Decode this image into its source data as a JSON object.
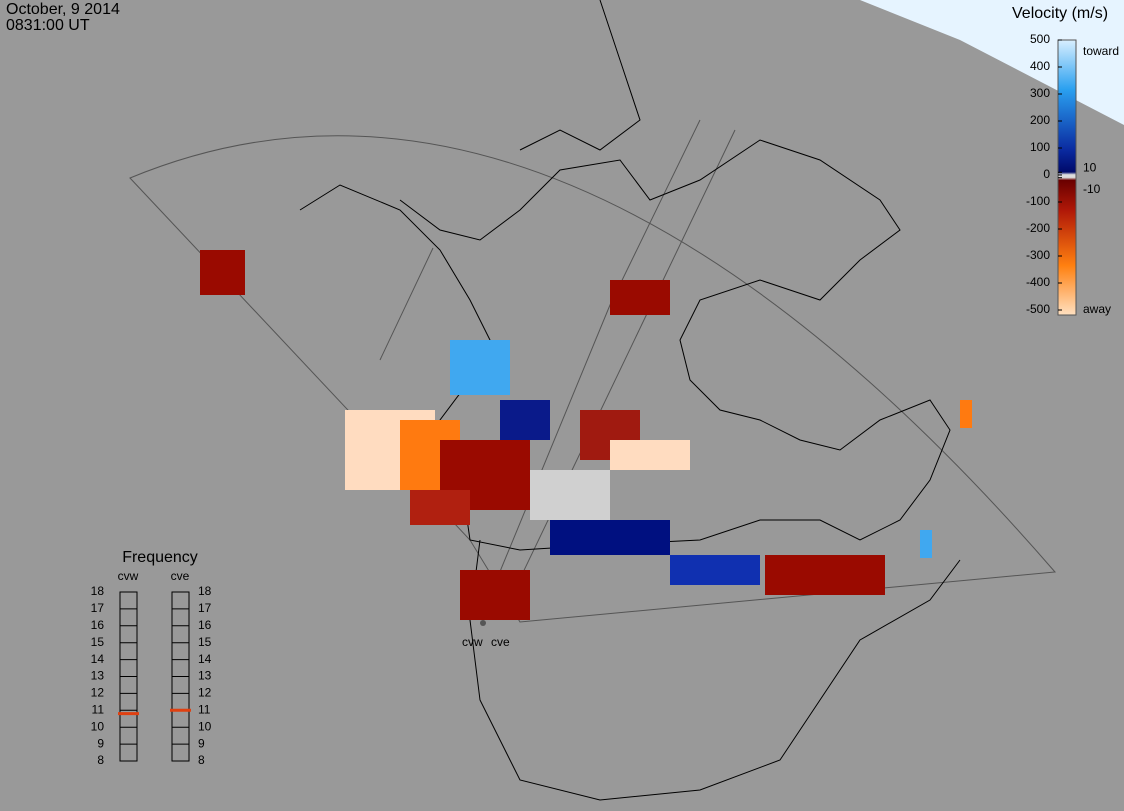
{
  "header": {
    "date": "October, 9 2014",
    "time": "0831:00 UT"
  },
  "velocity_scale": {
    "title": "Velocity (m/s)",
    "ticks": [
      500,
      400,
      300,
      200,
      100,
      10,
      0,
      -10,
      -100,
      -200,
      -300,
      -400,
      -500
    ],
    "toward": "toward",
    "away": "away"
  },
  "frequency": {
    "title": "Frequency",
    "ticks": [
      8,
      9,
      10,
      11,
      12,
      13,
      14,
      15,
      16,
      17,
      18
    ],
    "radars": [
      {
        "name": "cvw",
        "value": 10.8
      },
      {
        "name": "cve",
        "value": 11
      }
    ]
  }
}
